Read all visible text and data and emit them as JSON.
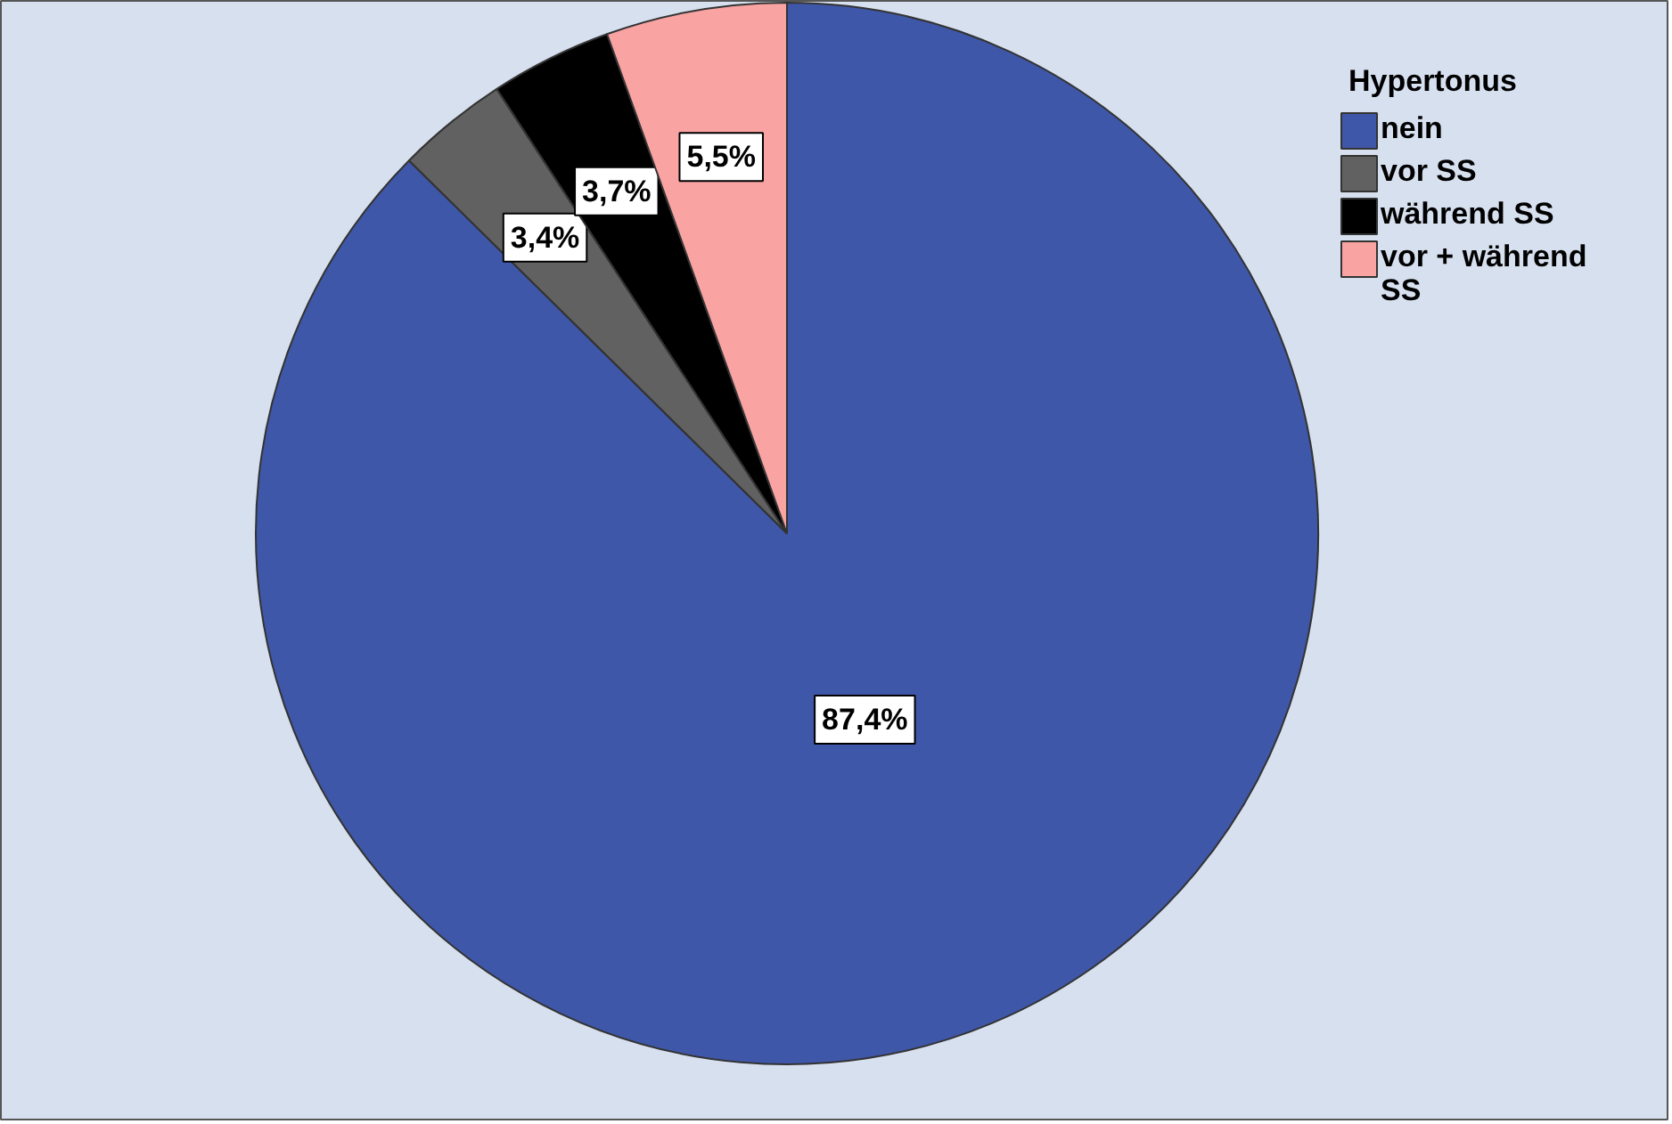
{
  "chart_data": {
    "type": "pie",
    "legend_title": "Hypertonus",
    "categories": [
      "nein",
      "vor SS",
      "während SS",
      "vor + während SS"
    ],
    "values": [
      87.4,
      3.4,
      3.7,
      5.5
    ],
    "colors": [
      "#3f57a8",
      "#616161",
      "#000000",
      "#f9a3a3"
    ],
    "value_labels": [
      "87,4%",
      "3,4%",
      "3,7%",
      "5,5%"
    ],
    "legend": "top right"
  }
}
